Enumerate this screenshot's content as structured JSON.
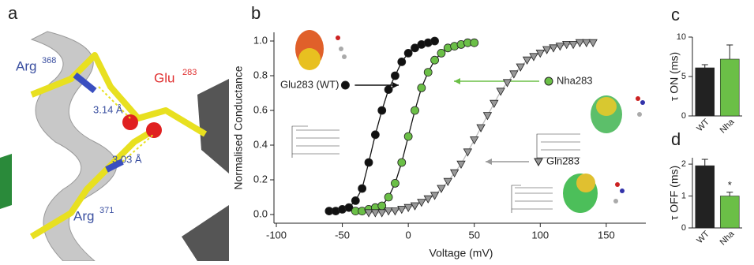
{
  "panel_a": {
    "panel": "a",
    "arg1": "Arg",
    "arg1_num": "368",
    "glu": "Glu",
    "glu_num": "283",
    "dist1": "3.14 Å",
    "dist2": "3.03 Å",
    "arg2": "Arg",
    "arg2_num": "371"
  },
  "chart_data": [
    {
      "type": "line",
      "panel": "b",
      "xlabel": "Voltage (mV)",
      "ylabel": "Normalised Conductance",
      "xlim": [
        -100,
        180
      ],
      "xticks": [
        -100,
        -50,
        0,
        50,
        100,
        150
      ],
      "ylim": [
        -0.05,
        1.05
      ],
      "yticks": [
        {
          "value": 0,
          "label": "0.0"
        },
        {
          "value": 0.2,
          "label": "0.2"
        },
        {
          "value": 0.4,
          "label": "0.4"
        },
        {
          "value": 0.6,
          "label": "0.6"
        },
        {
          "value": 0.8,
          "label": "0.8"
        },
        {
          "value": 1,
          "label": "1.0"
        }
      ],
      "series": [
        {
          "name": "Glu283 (WT)",
          "color": "#111111",
          "marker": "circle",
          "x": [
            -60,
            -55,
            -50,
            -45,
            -40,
            -35,
            -30,
            -25,
            -20,
            -15,
            -10,
            -5,
            0,
            5,
            10,
            15,
            20
          ],
          "values": [
            0.02,
            0.02,
            0.03,
            0.04,
            0.08,
            0.15,
            0.3,
            0.46,
            0.6,
            0.72,
            0.8,
            0.88,
            0.93,
            0.96,
            0.98,
            0.99,
            1.0
          ]
        },
        {
          "name": "Nha283",
          "color": "#6bbf47",
          "marker": "circle",
          "x": [
            -40,
            -35,
            -30,
            -25,
            -20,
            -15,
            -10,
            -5,
            0,
            5,
            10,
            15,
            20,
            25,
            30,
            35,
            40,
            45,
            50
          ],
          "values": [
            0.02,
            0.02,
            0.03,
            0.04,
            0.05,
            0.1,
            0.18,
            0.3,
            0.45,
            0.6,
            0.73,
            0.82,
            0.89,
            0.93,
            0.96,
            0.97,
            0.98,
            0.99,
            0.99
          ]
        },
        {
          "name": "Gln283",
          "color": "#999999",
          "marker": "triangle",
          "x": [
            -30,
            -25,
            -20,
            -15,
            -10,
            -5,
            0,
            5,
            10,
            15,
            20,
            25,
            30,
            35,
            40,
            45,
            50,
            55,
            60,
            65,
            70,
            75,
            80,
            85,
            90,
            95,
            100,
            105,
            110,
            115,
            120,
            125,
            130,
            135,
            140
          ],
          "values": [
            0.01,
            0.01,
            0.01,
            0.02,
            0.02,
            0.03,
            0.04,
            0.05,
            0.07,
            0.09,
            0.11,
            0.15,
            0.19,
            0.24,
            0.29,
            0.36,
            0.43,
            0.5,
            0.57,
            0.64,
            0.71,
            0.76,
            0.81,
            0.85,
            0.89,
            0.91,
            0.93,
            0.95,
            0.96,
            0.97,
            0.98,
            0.98,
            0.99,
            0.99,
            0.99
          ]
        }
      ]
    },
    {
      "type": "bar",
      "panel": "c",
      "ylabel": "τ ON (ms)",
      "categories": [
        "WT",
        "Nha"
      ],
      "values": [
        6.1,
        7.2
      ],
      "errors": [
        0.4,
        1.8
      ],
      "colors": [
        "#222222",
        "#6bbf47"
      ],
      "ylim": [
        0,
        10
      ],
      "yticks": [
        0,
        5,
        10
      ]
    },
    {
      "type": "bar",
      "panel": "d",
      "ylabel": "τ OFF (ms)",
      "categories": [
        "WT",
        "Nha"
      ],
      "values": [
        1.95,
        1.0
      ],
      "errors": [
        0.2,
        0.12
      ],
      "colors": [
        "#222222",
        "#6bbf47"
      ],
      "ylim": [
        0,
        2.2
      ],
      "yticks": [
        0,
        1,
        2
      ],
      "annotation": "*"
    }
  ]
}
